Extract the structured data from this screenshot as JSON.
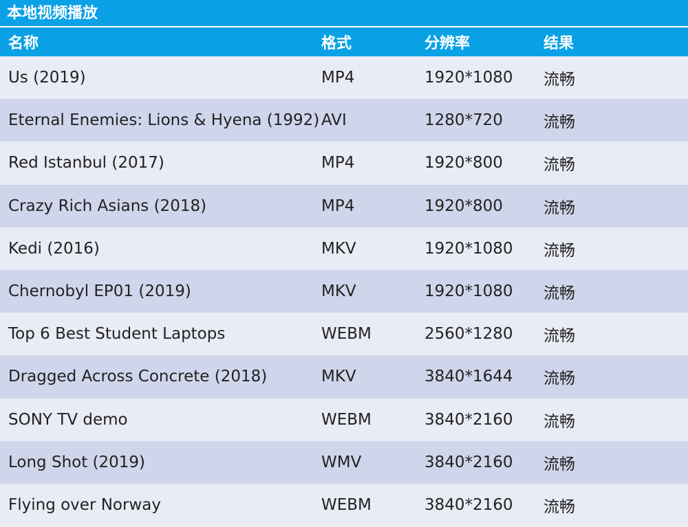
{
  "title": "本地视频播放",
  "table": {
    "header": [
      "名称",
      "格式",
      "分辨率",
      "结果"
    ],
    "rows": [
      [
        "Us (2019)",
        "MP4",
        "1920*1080",
        "流畅"
      ],
      [
        "Eternal Enemies: Lions & Hyena (1992)",
        "AVI",
        "1280*720",
        "流畅"
      ],
      [
        "Red Istanbul (2017)",
        "MP4",
        "1920*800",
        "流畅"
      ],
      [
        "Crazy Rich Asians (2018)",
        "MP4",
        "1920*800",
        "流畅"
      ],
      [
        "Kedi (2016)",
        "MKV",
        "1920*1080",
        "流畅"
      ],
      [
        "Chernobyl EP01 (2019)",
        "MKV",
        "1920*1080",
        "流畅"
      ],
      [
        "Top 6 Best Student Laptops",
        "WEBM",
        "2560*1280",
        "流畅"
      ],
      [
        "Dragged Across Concrete (2018)",
        "MKV",
        "3840*1644",
        "流畅"
      ],
      [
        "SONY TV demo",
        "WEBM",
        "3840*2160",
        "流畅"
      ],
      [
        "Long Shot (2019)",
        "WMV",
        "3840*2160",
        "流畅"
      ],
      [
        "Flying over Norway",
        "WEBM",
        "3840*2160",
        "流畅"
      ]
    ]
  }
}
